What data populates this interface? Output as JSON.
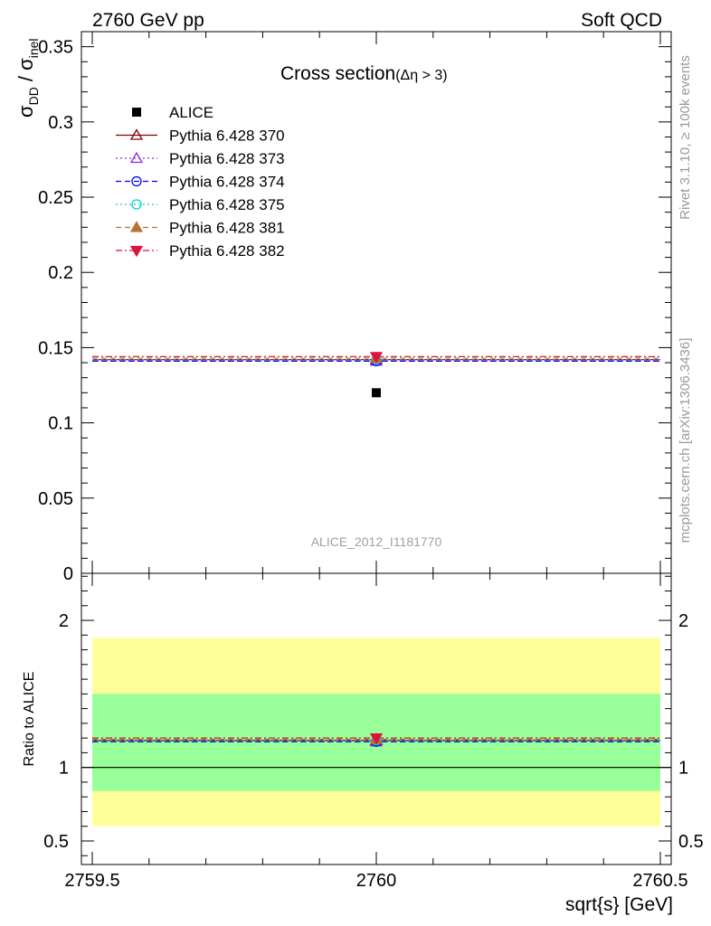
{
  "header": {
    "energy_label": "2760 GeV pp",
    "category_label": "Soft QCD"
  },
  "side_labels": {
    "rivet": "Rivet 3.1.10, ≥ 100k events",
    "mcplots": "mcplots.cern.ch [arXiv:1306.3436]"
  },
  "analysis_id": "ALICE_2012_I1181770",
  "chart_data": [
    {
      "panel": "main",
      "type": "scatter",
      "title": "Cross section",
      "title_suffix": "(Δη > 3)",
      "ylabel": "σDD / σinel",
      "xlim": [
        2759.5,
        2760.5
      ],
      "ylim": [
        0,
        0.36
      ],
      "yticks": [
        {
          "v": 0,
          "label": "0"
        },
        {
          "v": 0.05,
          "label": "0.05"
        },
        {
          "v": 0.1,
          "label": "0.1"
        },
        {
          "v": 0.15,
          "label": "0.15"
        },
        {
          "v": 0.2,
          "label": "0.2"
        },
        {
          "v": 0.25,
          "label": "0.25"
        },
        {
          "v": 0.3,
          "label": "0.3"
        },
        {
          "v": 0.35,
          "label": "0.35"
        }
      ],
      "legend_position": "top-left",
      "data": {
        "name": "ALICE",
        "x": [
          2760
        ],
        "y": [
          0.12
        ],
        "color": "#000000",
        "marker": "square"
      },
      "series": [
        {
          "name": "Pythia 6.428 370",
          "x": [
            2760
          ],
          "y": [
            0.142
          ],
          "color": "#800000",
          "dash": "solid",
          "marker": "triangle-up-open"
        },
        {
          "name": "Pythia 6.428 373",
          "x": [
            2760
          ],
          "y": [
            0.141
          ],
          "color": "#8a2be2",
          "dash": "dotted",
          "marker": "triangle-up-open"
        },
        {
          "name": "Pythia 6.428 374",
          "x": [
            2760
          ],
          "y": [
            0.141
          ],
          "color": "#0000ff",
          "dash": "dashed",
          "marker": "circle-open"
        },
        {
          "name": "Pythia 6.428 375",
          "x": [
            2760
          ],
          "y": [
            0.142
          ],
          "color": "#00ced1",
          "dash": "dotted",
          "marker": "circle-open"
        },
        {
          "name": "Pythia 6.428 381",
          "x": [
            2760
          ],
          "y": [
            0.143
          ],
          "color": "#b87333",
          "dash": "dashed",
          "marker": "triangle-up-filled"
        },
        {
          "name": "Pythia 6.428 382",
          "x": [
            2760
          ],
          "y": [
            0.144
          ],
          "color": "#dc143c",
          "dash": "dashdot",
          "marker": "triangle-down-filled"
        }
      ]
    },
    {
      "panel": "ratio",
      "type": "scatter",
      "ylabel": "Ratio to ALICE",
      "xlabel": "sqrt{s} [GeV]",
      "xlim": [
        2759.5,
        2760.5
      ],
      "ylim": [
        0.34,
        2.32
      ],
      "xticks": [
        {
          "v": 2759.5,
          "label": "2759.5"
        },
        {
          "v": 2760,
          "label": "2760"
        },
        {
          "v": 2760.5,
          "label": "2760.5"
        }
      ],
      "yticks": [
        {
          "v": 0.5,
          "label": "0.5"
        },
        {
          "v": 1,
          "label": "1"
        },
        {
          "v": 2,
          "label": "2"
        }
      ],
      "bands": [
        {
          "name": "outer",
          "lo": 0.6,
          "hi": 1.88,
          "color": "#ffff99"
        },
        {
          "name": "inner",
          "lo": 0.84,
          "hi": 1.5,
          "color": "#99ff99"
        }
      ],
      "reference": 1,
      "series": [
        {
          "name": "Pythia 6.428 370",
          "y": [
            1.183
          ],
          "color": "#800000",
          "dash": "solid",
          "marker": "triangle-up-open"
        },
        {
          "name": "Pythia 6.428 373",
          "y": [
            1.175
          ],
          "color": "#8a2be2",
          "dash": "dotted",
          "marker": "triangle-up-open"
        },
        {
          "name": "Pythia 6.428 374",
          "y": [
            1.175
          ],
          "color": "#0000ff",
          "dash": "dashed",
          "marker": "circle-open"
        },
        {
          "name": "Pythia 6.428 375",
          "y": [
            1.183
          ],
          "color": "#00ced1",
          "dash": "dotted",
          "marker": "circle-open"
        },
        {
          "name": "Pythia 6.428 381",
          "y": [
            1.192
          ],
          "color": "#b87333",
          "dash": "dashed",
          "marker": "triangle-up-filled"
        },
        {
          "name": "Pythia 6.428 382",
          "y": [
            1.2
          ],
          "color": "#dc143c",
          "dash": "dashdot",
          "marker": "triangle-down-filled"
        }
      ]
    }
  ]
}
